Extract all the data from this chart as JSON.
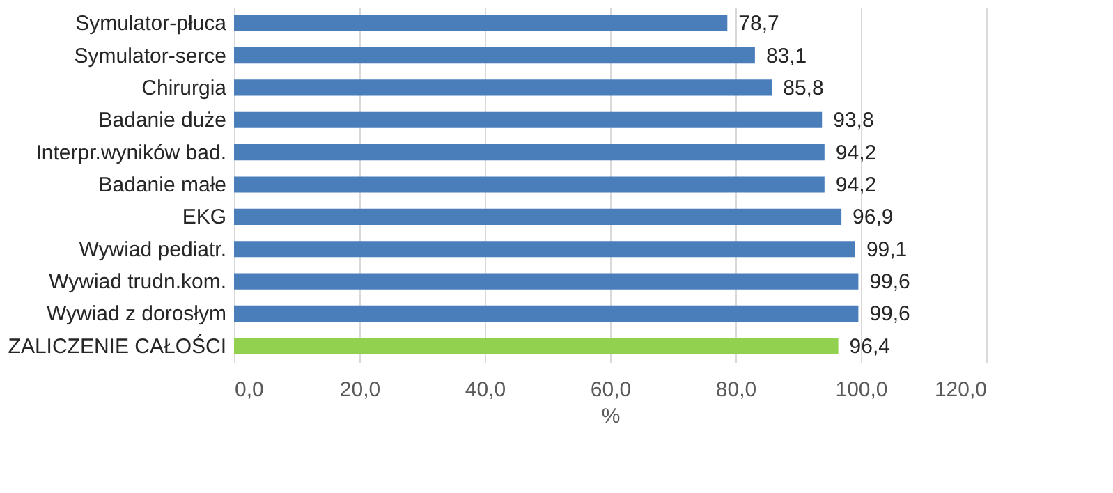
{
  "chart_data": {
    "type": "bar",
    "orientation": "horizontal",
    "xlabel": "%",
    "categories": [
      "Symulator-płuca",
      "Symulator-serce",
      "Chirurgia",
      "Badanie duże",
      "Interpr.wyników bad.",
      "Badanie małe",
      "EKG",
      "Wywiad pediatr.",
      "Wywiad trudn.kom.",
      "Wywiad z dorosłym",
      "ZALICZENIE CAŁOŚCI"
    ],
    "values": [
      78.7,
      83.1,
      85.8,
      93.8,
      94.2,
      94.2,
      96.9,
      99.1,
      99.6,
      99.6,
      96.4
    ],
    "value_labels": [
      "78,7",
      "83,1",
      "85,8",
      "93,8",
      "94,2",
      "94,2",
      "96,9",
      "99,1",
      "99,6",
      "99,6",
      "96,4"
    ],
    "colors": [
      "#4a7ebb",
      "#4a7ebb",
      "#4a7ebb",
      "#4a7ebb",
      "#4a7ebb",
      "#4a7ebb",
      "#4a7ebb",
      "#4a7ebb",
      "#4a7ebb",
      "#4a7ebb",
      "#92d050"
    ],
    "xlim": [
      0,
      120
    ],
    "xticks": [
      {
        "value": 0,
        "label": "0,0"
      },
      {
        "value": 20,
        "label": "20,0"
      },
      {
        "value": 40,
        "label": "40,0"
      },
      {
        "value": 60,
        "label": "60,0"
      },
      {
        "value": 80,
        "label": "80,0"
      },
      {
        "value": 100,
        "label": "100,0"
      },
      {
        "value": 120,
        "label": "120,0"
      }
    ],
    "grid": "x"
  }
}
